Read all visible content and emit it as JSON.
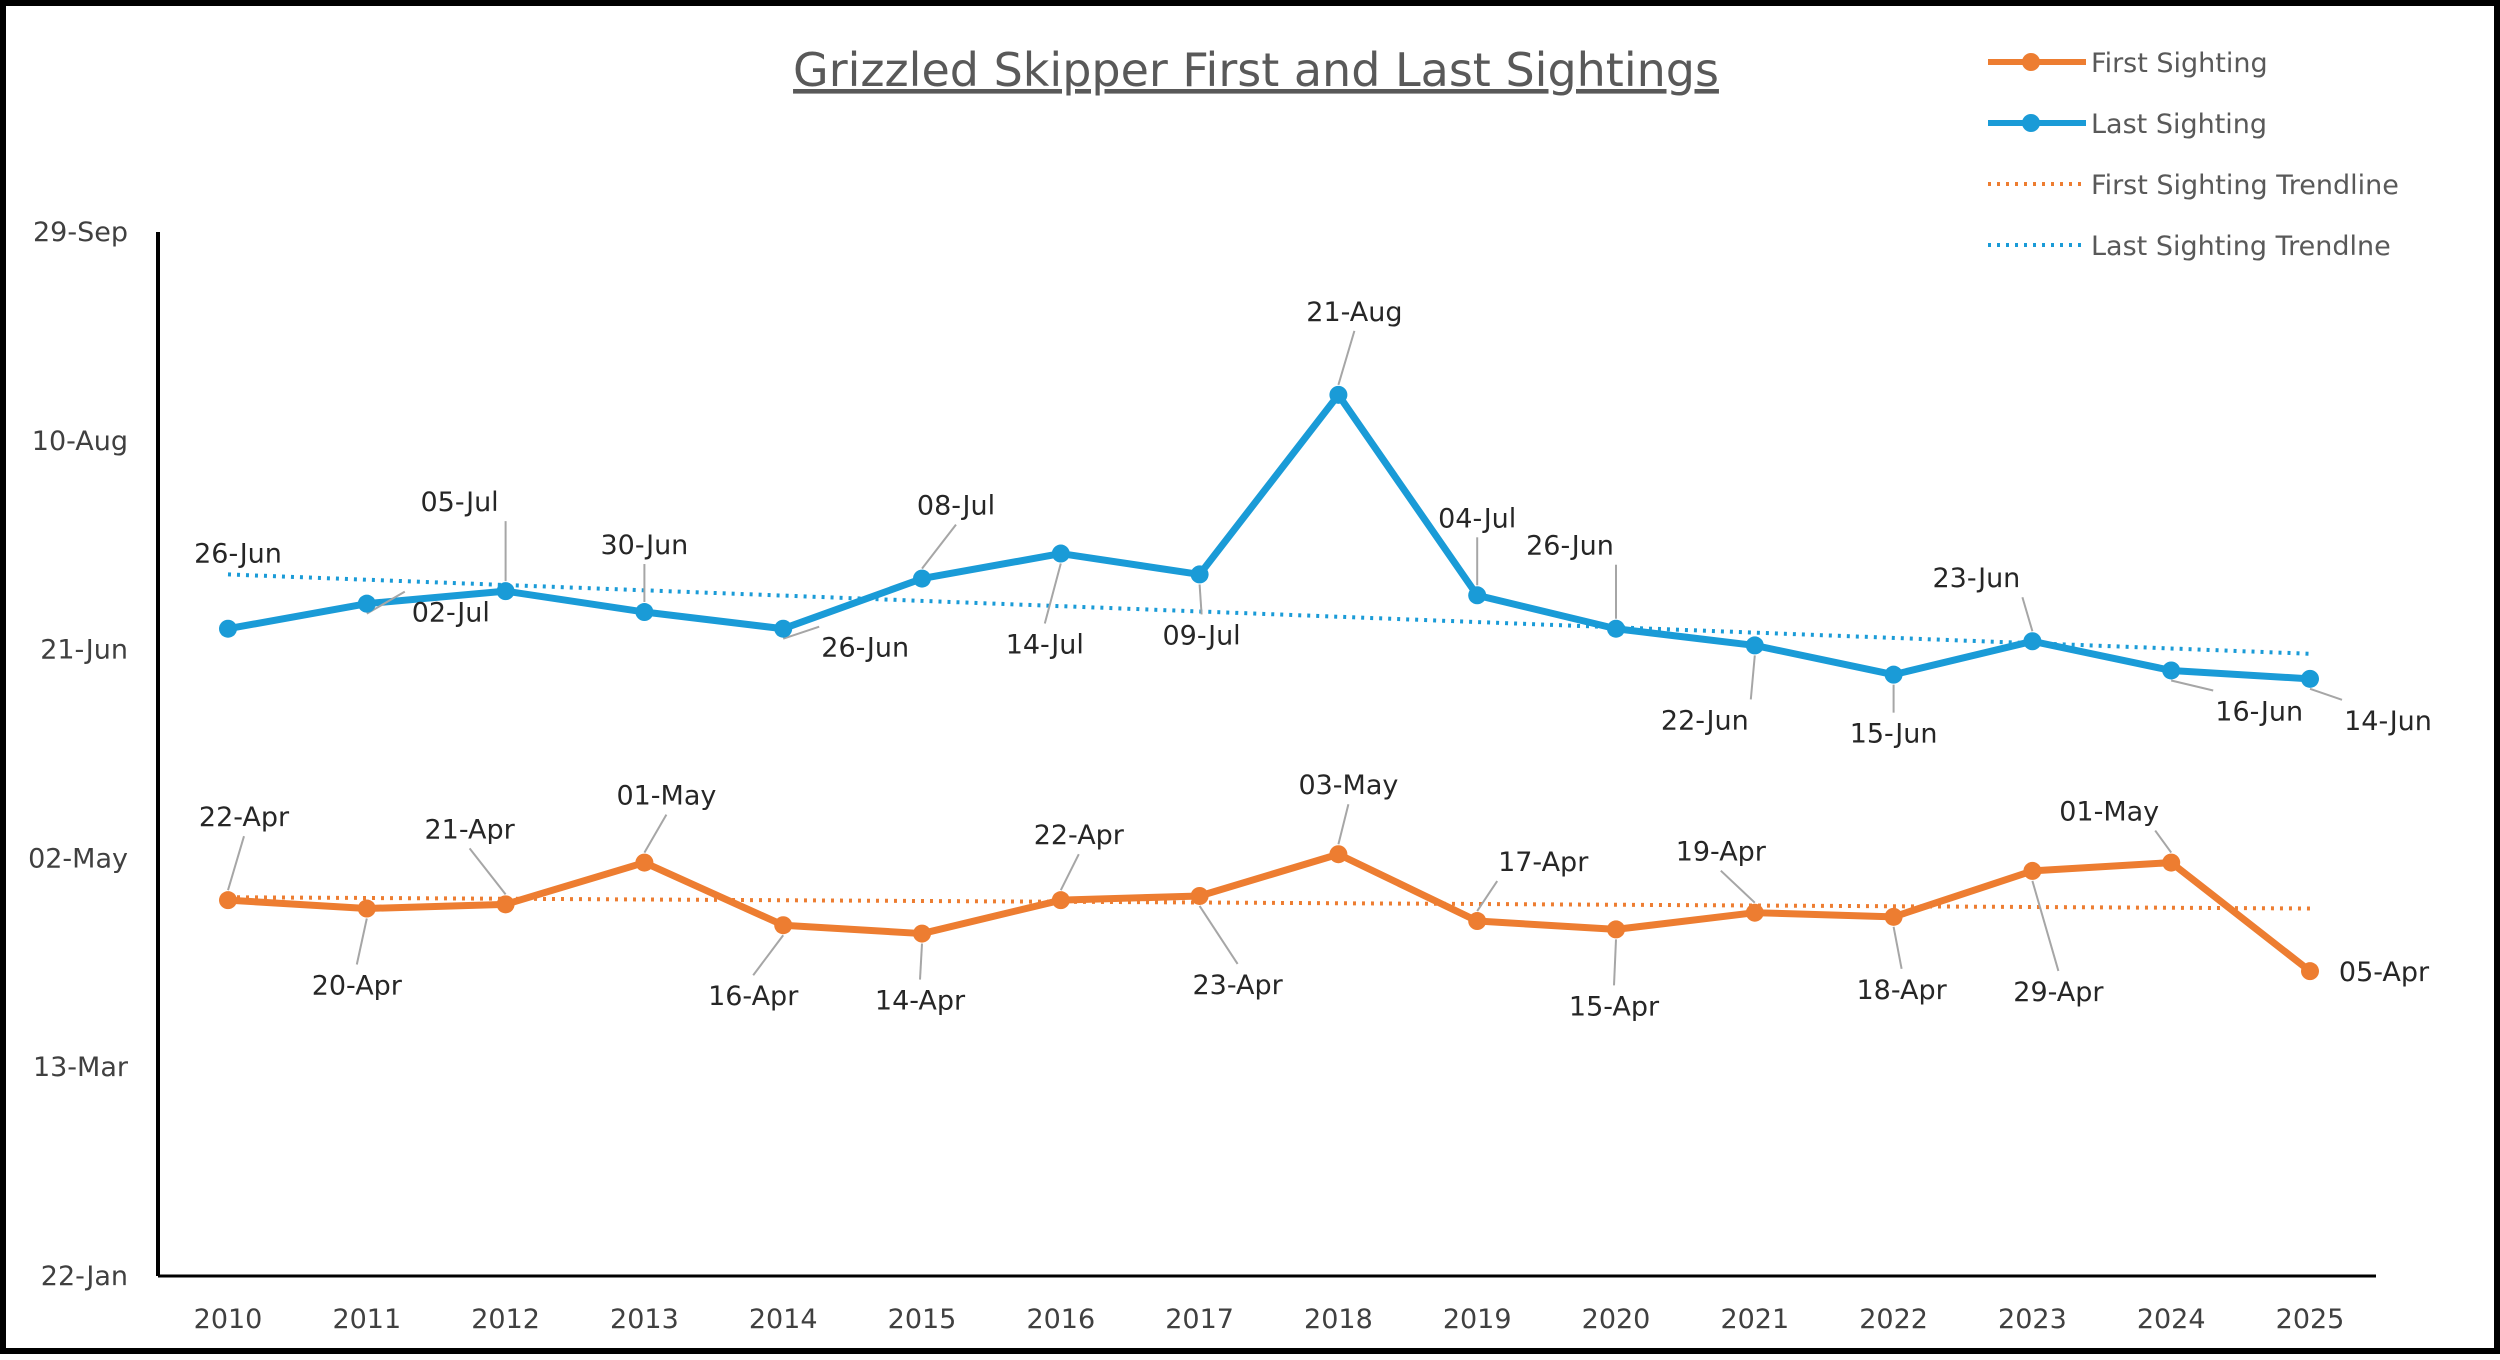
{
  "chart_data": {
    "type": "line",
    "title": "Grizzled Skipper First and Last Sightings",
    "xlabel": "",
    "ylabel": "",
    "categories": [
      "2010",
      "2011",
      "2012",
      "2013",
      "2014",
      "2015",
      "2016",
      "2017",
      "2018",
      "2019",
      "2020",
      "2021",
      "2022",
      "2023",
      "2024",
      "2025"
    ],
    "y_ticks": [
      {
        "label": "22-Jan",
        "value": 22
      },
      {
        "label": "13-Mar",
        "value": 72
      },
      {
        "label": "02-May",
        "value": 122
      },
      {
        "label": "21-Jun",
        "value": 172
      },
      {
        "label": "10-Aug",
        "value": 222
      },
      {
        "label": "29-Sep",
        "value": 272
      }
    ],
    "ylim": [
      22,
      272
    ],
    "grid": false,
    "legend_position": "top-right",
    "series": [
      {
        "name": "First Sighting",
        "color": "#ED7D31",
        "values": [
          112,
          110,
          111,
          121,
          106,
          104,
          112,
          113,
          123,
          107,
          105,
          109,
          108,
          119,
          121,
          95
        ],
        "labels": [
          "22-Apr",
          "20-Apr",
          "21-Apr",
          "01-May",
          "16-Apr",
          "14-Apr",
          "22-Apr",
          "23-Apr",
          "03-May",
          "17-Apr",
          "15-Apr",
          "19-Apr",
          "18-Apr",
          "29-Apr",
          "01-May",
          "05-Apr"
        ]
      },
      {
        "name": "Last Sighting",
        "color": "#1A9BD7",
        "values": [
          177,
          183,
          186,
          181,
          177,
          189,
          195,
          190,
          233,
          185,
          177,
          173,
          166,
          174,
          167,
          165
        ],
        "labels": [
          "26-Jun",
          "02-Jul",
          "05-Jul",
          "30-Jun",
          "26-Jun",
          "08-Jul",
          "14-Jul",
          "09-Jul",
          "21-Aug",
          "04-Jul",
          "26-Jun",
          "22-Jun",
          "15-Jun",
          "23-Jun",
          "16-Jun",
          "14-Jun"
        ]
      }
    ],
    "trendlines": [
      {
        "name": "First Sighting Trendline",
        "color": "#ED7D31",
        "start": 112.7,
        "end": 110.0
      },
      {
        "name": "Last Sighting Trendlne",
        "color": "#1A9BD7",
        "start": 190.0,
        "end": 171.0
      }
    ]
  }
}
